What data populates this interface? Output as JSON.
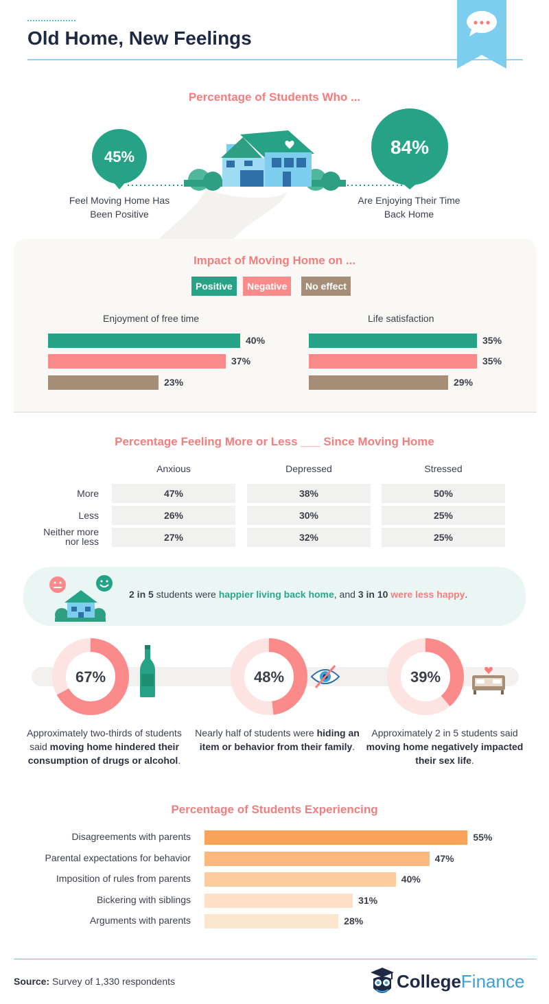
{
  "header": {
    "title": "Old Home, New Feelings"
  },
  "colors": {
    "teal": "#26a386",
    "coral": "#fb8a8a",
    "brown": "#a68d78",
    "orange": "#f9a35a",
    "sky": "#5bc0e8",
    "navy": "#1e2a44"
  },
  "chart_data": [
    {
      "type": "table",
      "title": "Percentage of Students Who ...",
      "items": [
        {
          "value": "45%",
          "label": "Feel Moving Home Has Been Positive"
        },
        {
          "value": "84%",
          "label": "Are Enjoying Their Time Back Home"
        }
      ]
    },
    {
      "type": "bar",
      "title": "Impact of Moving Home on ...",
      "legend": [
        "Positive",
        "Negative",
        "No effect"
      ],
      "groups": [
        {
          "name": "Enjoyment of free time",
          "values": [
            40,
            37,
            23
          ]
        },
        {
          "name": "Life satisfaction",
          "values": [
            35,
            35,
            29
          ]
        }
      ]
    },
    {
      "type": "table",
      "title": "Percentage Feeling More or Less ___ Since Moving Home",
      "columns": [
        "Anxious",
        "Depressed",
        "Stressed"
      ],
      "rows": [
        {
          "label": "More",
          "values": [
            "47%",
            "38%",
            "50%"
          ]
        },
        {
          "label": "Less",
          "values": [
            "26%",
            "30%",
            "25%"
          ]
        },
        {
          "label": "Neither more nor less",
          "values": [
            "27%",
            "32%",
            "25%"
          ]
        }
      ]
    },
    {
      "type": "pie",
      "title": "",
      "items": [
        {
          "value": 67,
          "label": "67%",
          "caption_pre": "Approximately two-thirds of students said ",
          "caption_bold": "moving home hindered their consumption of drugs or alcohol",
          "caption_post": "."
        },
        {
          "value": 48,
          "label": "48%",
          "caption_pre": "Nearly half of students were ",
          "caption_bold": "hiding an item or behavior from their family",
          "caption_post": "."
        },
        {
          "value": 39,
          "label": "39%",
          "caption_pre": "Approximately 2 in 5 students said ",
          "caption_bold": "moving home negatively impacted their sex life",
          "caption_post": "."
        }
      ]
    },
    {
      "type": "bar",
      "title": "Percentage of Students Experiencing",
      "categories": [
        "Disagreements with parents",
        "Parental expectations for behavior",
        "Imposition of rules from parents",
        "Bickering with siblings",
        "Arguments with parents"
      ],
      "values": [
        55,
        47,
        40,
        31,
        28
      ]
    }
  ],
  "happy": {
    "a": "2 in 5",
    "b": " students were ",
    "c": "happier living back home",
    "d": ", and ",
    "e": "3 in 10",
    "f": " ",
    "g": "were less happy",
    "h": "."
  },
  "footer": {
    "source_label": "Source:",
    "source_text": " Survey of 1,330 respondents",
    "logo_a": "College",
    "logo_b": "Finance"
  }
}
